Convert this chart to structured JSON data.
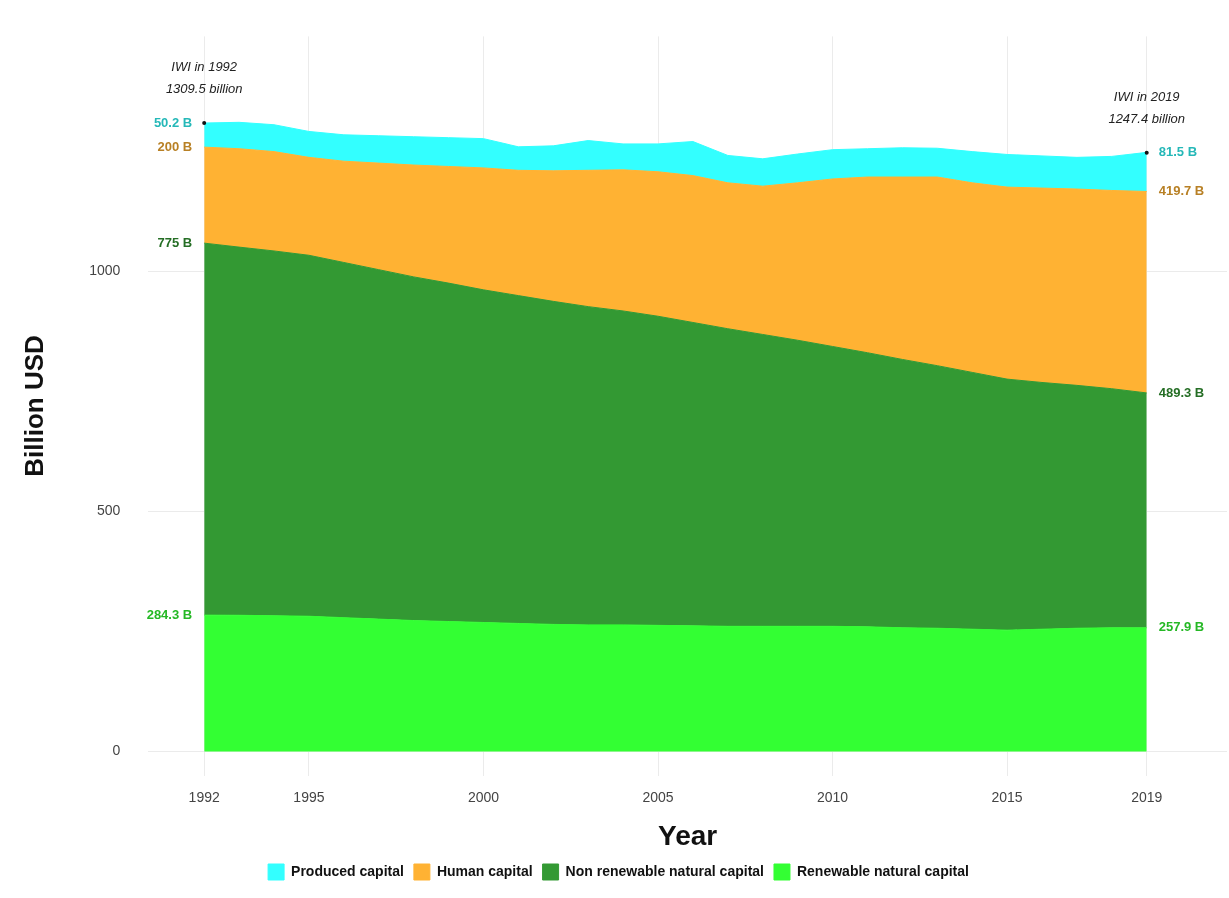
{
  "chart_data": {
    "type": "area",
    "stacked": true,
    "xlabel": "Year",
    "ylabel": "Billion USD",
    "x": [
      1992,
      1993,
      1994,
      1995,
      1996,
      1997,
      1998,
      1999,
      2000,
      2001,
      2002,
      2003,
      2004,
      2005,
      2006,
      2007,
      2008,
      2009,
      2010,
      2011,
      2012,
      2013,
      2014,
      2015,
      2016,
      2017,
      2018,
      2019
    ],
    "series": [
      {
        "name": "Renewable natural capital",
        "color": "#33ff33",
        "values": [
          284.3,
          284,
          283,
          282,
          279,
          276,
          273,
          271,
          269,
          267,
          265,
          264,
          264,
          263,
          262,
          261,
          261,
          261,
          261,
          260,
          258,
          257,
          255,
          253,
          255,
          257,
          258,
          257.9
        ],
        "value_labels": [
          "284.3 B",
          null,
          null,
          null,
          null,
          null,
          null,
          null,
          null,
          null,
          null,
          null,
          null,
          null,
          null,
          null,
          null,
          null,
          null,
          null,
          null,
          null,
          null,
          null,
          null,
          null,
          null,
          "257.9 B"
        ]
      },
      {
        "name": "Non renewable natural capital",
        "color": "#339933",
        "values": [
          775,
          767,
          760,
          752,
          740,
          728,
          716,
          705,
          693,
          683,
          673,
          663,
          654,
          644,
          632,
          620,
          608,
          596,
          583,
          571,
          559,
          547,
          535,
          523,
          514,
          506,
          498,
          489.3
        ],
        "value_labels": [
          "775 B",
          null,
          null,
          null,
          null,
          null,
          null,
          null,
          null,
          null,
          null,
          null,
          null,
          null,
          null,
          null,
          null,
          null,
          null,
          null,
          null,
          null,
          null,
          null,
          null,
          null,
          null,
          "489.3 B"
        ]
      },
      {
        "name": "Human capital",
        "color": "#ffb233",
        "values": [
          200,
          205,
          207,
          204,
          211,
          222,
          233,
          243,
          254,
          261,
          272,
          284,
          294,
          301,
          306,
          304,
          309,
          328,
          349,
          366,
          380,
          393,
          395,
          400,
          405,
          409,
          413,
          419.7
        ],
        "value_labels": [
          "200 B",
          null,
          null,
          null,
          null,
          null,
          null,
          null,
          null,
          null,
          null,
          null,
          null,
          null,
          null,
          null,
          null,
          null,
          null,
          null,
          null,
          null,
          null,
          null,
          null,
          null,
          null,
          "419.7 B"
        ]
      },
      {
        "name": "Produced capital",
        "color": "#33ffff",
        "values": [
          50.2,
          55,
          56,
          54,
          55,
          57,
          59,
          60,
          61,
          49,
          52,
          62,
          54,
          58,
          71,
          57,
          57,
          60,
          61,
          59,
          61,
          60,
          65,
          68,
          67,
          66,
          71,
          81.5
        ],
        "value_labels": [
          "50.2 B",
          null,
          null,
          null,
          null,
          null,
          null,
          null,
          null,
          null,
          null,
          null,
          null,
          null,
          null,
          null,
          null,
          null,
          null,
          null,
          null,
          null,
          null,
          null,
          null,
          null,
          null,
          "81.5 B"
        ]
      }
    ],
    "xlim": [
      1990.4,
      2021.3
    ],
    "xticks": [
      1992,
      1995,
      2000,
      2005,
      2010,
      2015,
      2019
    ],
    "ylim": [
      -50,
      1490
    ],
    "yticks": [
      0,
      500,
      1000
    ],
    "grid": true,
    "legend": "bottom",
    "annotations": [
      {
        "text": "IWI in 1992\n1309.5 billion",
        "x": 1992,
        "y": 1309.5
      },
      {
        "text": "IWI in 2019\n1247.4 billion",
        "x": 2019,
        "y": 1247.4
      }
    ]
  }
}
